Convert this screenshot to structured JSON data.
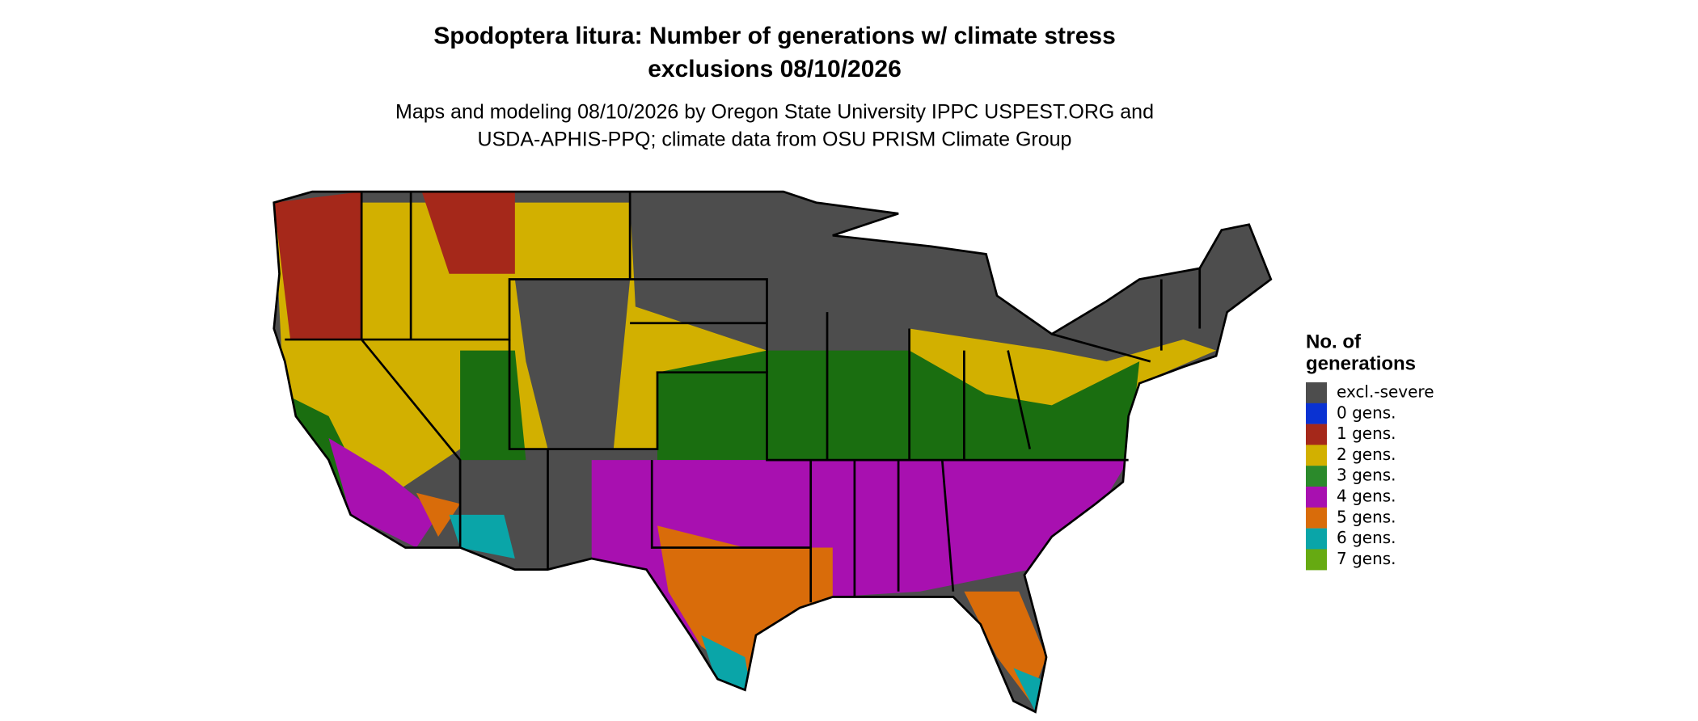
{
  "title_lines": [
    "Spodoptera litura: Number of generations w/ climate stress",
    "exclusions 08/10/2026"
  ],
  "subtitle_lines": [
    "Maps and modeling 08/10/2026 by Oregon State University IPPC USPEST.ORG and",
    "USDA-APHIS-PPQ; climate data from OSU PRISM Climate Group"
  ],
  "legend": {
    "title_lines": [
      "No. of",
      "generations"
    ],
    "items": [
      {
        "label": "excl.-severe",
        "color": "#4d4d4d"
      },
      {
        "label": "0 gens.",
        "color": "#0a32d2"
      },
      {
        "label": "1 gens.",
        "color": "#a5281a"
      },
      {
        "label": "2 gens.",
        "color": "#d2b000"
      },
      {
        "label": "3 gens.",
        "color": "#2b8a2b"
      },
      {
        "label": "4 gens.",
        "color": "#a810b0"
      },
      {
        "label": "5 gens.",
        "color": "#d96c0a"
      },
      {
        "label": "6 gens.",
        "color": "#0aa5a8"
      },
      {
        "label": "7 gens.",
        "color": "#66aa12"
      }
    ]
  }
}
